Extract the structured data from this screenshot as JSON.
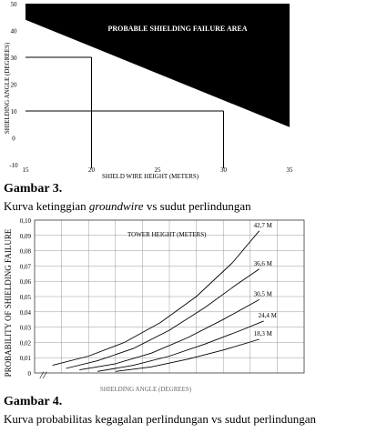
{
  "chart_data": [
    {
      "type": "area",
      "title": "",
      "xlabel": "SHIELD WIRE HEIGHT (METERS)",
      "ylabel": "SHIELDING ANGLE (DEGREES)",
      "xlim": [
        15,
        35
      ],
      "ylim": [
        -10,
        50
      ],
      "x_ticks": [
        "15",
        "20",
        "25",
        "30",
        "35"
      ],
      "y_ticks": [
        "-10",
        "0",
        "10",
        "20",
        "30",
        "40",
        "50"
      ],
      "area_label": "PROBABLE SHIELDING FAILURE AREA",
      "boundary": [
        {
          "x": 15,
          "y": 44
        },
        {
          "x": 35,
          "y": 4
        }
      ],
      "grid": false,
      "reference_lines": {
        "x": [
          20,
          30
        ],
        "y": [
          30,
          10
        ]
      }
    },
    {
      "type": "line",
      "title": "TOWER HEIGHT (METERS)",
      "xlabel": "SHIELDING ANGLE (DEGREES)",
      "ylabel": "PROBABILITY OF SHIELDING FAILURE",
      "xlim": [
        0,
        60
      ],
      "ylim": [
        0,
        0.1
      ],
      "x_ticks": [],
      "y_ticks": [
        "0",
        "0,01",
        "0,02",
        "0,03",
        "0,04",
        "0,05",
        "0,06",
        "0,07",
        "0,08",
        "0,09",
        "0,10"
      ],
      "grid": true,
      "series": [
        {
          "name": "42,7 M",
          "points": [
            [
              4,
              0.005
            ],
            [
              12,
              0.011
            ],
            [
              20,
              0.02
            ],
            [
              28,
              0.033
            ],
            [
              36,
              0.05
            ],
            [
              44,
              0.072
            ],
            [
              50,
              0.093
            ]
          ]
        },
        {
          "name": "36,6 M",
          "points": [
            [
              7,
              0.003
            ],
            [
              14,
              0.008
            ],
            [
              22,
              0.016
            ],
            [
              30,
              0.028
            ],
            [
              38,
              0.043
            ],
            [
              45,
              0.058
            ],
            [
              50,
              0.068
            ]
          ]
        },
        {
          "name": "30,5 M",
          "points": [
            [
              10,
              0.002
            ],
            [
              18,
              0.006
            ],
            [
              26,
              0.013
            ],
            [
              34,
              0.023
            ],
            [
              42,
              0.035
            ],
            [
              50,
              0.048
            ]
          ]
        },
        {
          "name": "24,4 M",
          "points": [
            [
              14,
              0.001
            ],
            [
              22,
              0.005
            ],
            [
              30,
              0.011
            ],
            [
              38,
              0.019
            ],
            [
              46,
              0.028
            ],
            [
              51,
              0.034
            ]
          ]
        },
        {
          "name": "18,3 M",
          "points": [
            [
              18,
              0.001
            ],
            [
              26,
              0.004
            ],
            [
              34,
              0.009
            ],
            [
              42,
              0.015
            ],
            [
              50,
              0.022
            ]
          ]
        }
      ]
    }
  ],
  "figures": {
    "fig3_label": "Gambar 3.",
    "fig3_caption_pre": "Kurva ketinggian ",
    "fig3_caption_em": "groundwire",
    "fig3_caption_post": " vs sudut perlindungan",
    "fig4_label": "Gambar 4.",
    "fig4_caption": "Kurva probabilitas kegagalan perlindungan vs sudut perlindungan"
  }
}
